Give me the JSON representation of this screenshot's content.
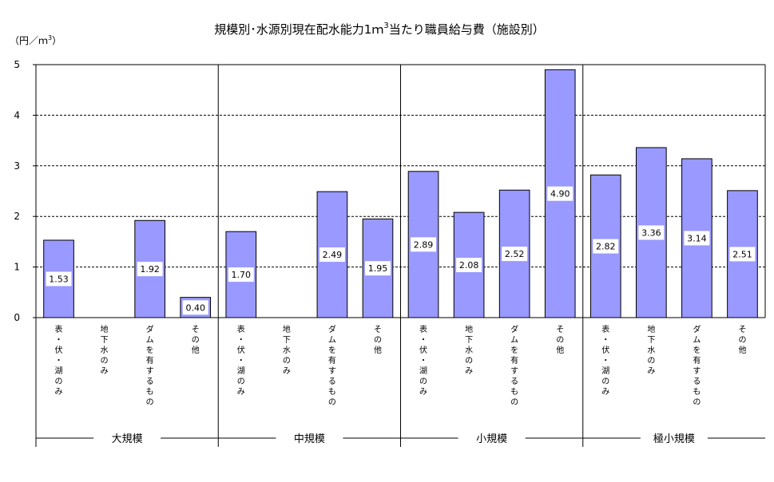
{
  "chart_data": {
    "type": "bar",
    "title": "規模別･水源別現在配水能力1ｍ",
    "title_sup": "3",
    "title_suffix": "当たり職員給与費（施設別）",
    "ylabel": "（円／ｍ",
    "ylabel_sup": "3",
    "ylabel_suffix": "）",
    "ylim": [
      0,
      5
    ],
    "yticks": [
      "0",
      "1",
      "2",
      "3",
      "4",
      "5"
    ],
    "grid": true,
    "bar_color": "#9999ff",
    "groups": [
      {
        "name": "大規模",
        "categories": [
          "表・伏・湖のみ",
          "地下水のみ",
          "ダムを有するもの",
          "その他"
        ],
        "values": [
          1.53,
          null,
          1.92,
          0.4
        ],
        "labels": [
          "1.53",
          "",
          "1.92",
          "0.40"
        ]
      },
      {
        "name": "中規模",
        "categories": [
          "表・伏・湖のみ",
          "地下水のみ",
          "ダムを有するもの",
          "その他"
        ],
        "values": [
          1.7,
          null,
          2.49,
          1.95
        ],
        "labels": [
          "1.70",
          "",
          "2.49",
          "1.95"
        ]
      },
      {
        "name": "小規模",
        "categories": [
          "表・伏・湖のみ",
          "地下水のみ",
          "ダムを有するもの",
          "その他"
        ],
        "values": [
          2.89,
          2.08,
          2.52,
          4.9
        ],
        "labels": [
          "2.89",
          "2.08",
          "2.52",
          "4.90"
        ]
      },
      {
        "name": "極小規模",
        "categories": [
          "表・伏・湖のみ",
          "地下水のみ",
          "ダムを有するもの",
          "その他"
        ],
        "values": [
          2.82,
          3.36,
          3.14,
          2.51
        ],
        "labels": [
          "2.82",
          "3.36",
          "3.14",
          "2.51"
        ]
      }
    ]
  }
}
